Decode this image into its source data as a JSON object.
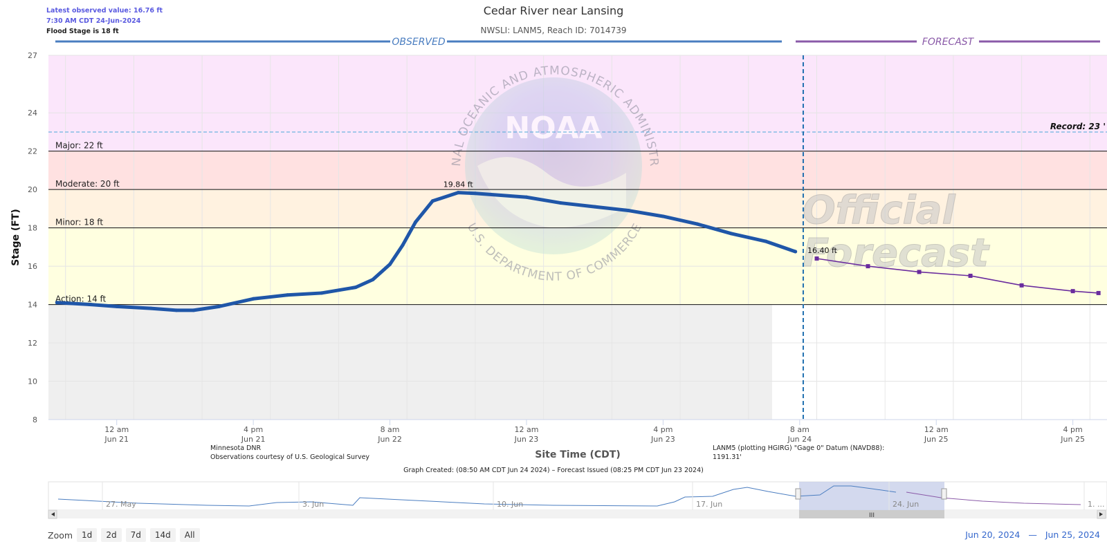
{
  "header": {
    "latest_value": "Latest observed value: 16.76 ft",
    "latest_time": "7:30 AM CDT 24-Jun-2024",
    "flood_stage": "Flood Stage is 18 ft",
    "title": "Cedar River near Lansing",
    "subtitle": "NWSLI: LANM5, Reach ID: 7014739"
  },
  "footer": {
    "credit_line1": "Minnesota DNR",
    "credit_line2": "Observations courtesy of U.S. Geological Survey",
    "datum_line1": "LANM5 (plotting HGIRG) \"Gage 0\" Datum (NAVD88):",
    "datum_line2": "1191.31'",
    "graph_created": "Graph Created: (08:50 AM CDT Jun 24 2024) – Forecast Issued (08:25 PM CDT Jun 23 2024)"
  },
  "watermark": {
    "arc_text": "NATIONAL OCEANIC AND ATMOSPHERIC ADMINISTRATION",
    "bottom_text": "U.S. DEPARTMENT OF COMMERCE",
    "logo_text": "NOAA",
    "official1": "Official",
    "official2": "Forecast"
  },
  "navigator": {
    "labels": [
      "27. May",
      "3. Jun",
      "10. Jun",
      "17. Jun",
      "24. Jun",
      "1. ..."
    ],
    "grip": "III"
  },
  "zoom": {
    "label": "Zoom",
    "buttons": [
      "1d",
      "2d",
      "7d",
      "14d",
      "All"
    ]
  },
  "range": {
    "from": "Jun 20, 2024",
    "dash": "—",
    "to": "Jun 25, 2024"
  },
  "chart_data": {
    "type": "line",
    "title": "Cedar River near Lansing",
    "subtitle": "NWSLI: LANM5, Reach ID: 7014739",
    "xlabel": "Site Time (CDT)",
    "ylabel": "Stage (FT)",
    "ylim": [
      8,
      27
    ],
    "yticks": [
      "8",
      "10",
      "12",
      "14",
      "16",
      "18",
      "20",
      "22",
      "24",
      "27"
    ],
    "xticks": [
      {
        "time": "2024-06-21T00:00",
        "label1": "12 am",
        "label2": "Jun 21"
      },
      {
        "time": "2024-06-21T16:00",
        "label1": "4 pm",
        "label2": "Jun 21"
      },
      {
        "time": "2024-06-22T08:00",
        "label1": "8 am",
        "label2": "Jun 22"
      },
      {
        "time": "2024-06-23T00:00",
        "label1": "12 am",
        "label2": "Jun 23"
      },
      {
        "time": "2024-06-23T16:00",
        "label1": "4 pm",
        "label2": "Jun 23"
      },
      {
        "time": "2024-06-24T08:00",
        "label1": "8 am",
        "label2": "Jun 24"
      },
      {
        "time": "2024-06-25T00:00",
        "label1": "12 am",
        "label2": "Jun 25"
      },
      {
        "time": "2024-06-25T16:00",
        "label1": "4 pm",
        "label2": "Jun 25"
      }
    ],
    "sections": {
      "observed": "OBSERVED",
      "forecast": "FORECAST"
    },
    "forecast_divider": "2024-06-24T08:25",
    "flood_categories": [
      {
        "name": "Action",
        "label": "Action: 14 ft",
        "from": 14,
        "to": 18,
        "color": "#ffffe0"
      },
      {
        "name": "Minor",
        "label": "Minor: 18 ft",
        "from": 18,
        "to": 20,
        "color": "#fff2e0"
      },
      {
        "name": "Moderate",
        "label": "Moderate: 20 ft",
        "from": 20,
        "to": 22,
        "color": "#ffe1e1"
      },
      {
        "name": "Major",
        "label": "Major: 22 ft",
        "from": 22,
        "to": 27,
        "color": "#fbe6fb"
      }
    ],
    "below_action_color": "#efefef",
    "record": {
      "value": 23,
      "label": "Record: 23 '"
    },
    "series": [
      {
        "name": "Observed",
        "color": "#1f56a8",
        "x": [
          "2024-06-20T17:00",
          "2024-06-20T21:00",
          "2024-06-21T00:00",
          "2024-06-21T04:00",
          "2024-06-21T07:00",
          "2024-06-21T09:00",
          "2024-06-21T12:00",
          "2024-06-21T16:00",
          "2024-06-21T20:00",
          "2024-06-22T00:00",
          "2024-06-22T04:00",
          "2024-06-22T06:00",
          "2024-06-22T08:00",
          "2024-06-22T09:30",
          "2024-06-22T11:00",
          "2024-06-22T13:00",
          "2024-06-22T16:00",
          "2024-06-22T18:00",
          "2024-06-22T21:00",
          "2024-06-23T00:00",
          "2024-06-23T04:00",
          "2024-06-23T08:00",
          "2024-06-23T12:00",
          "2024-06-23T16:00",
          "2024-06-23T20:00",
          "2024-06-24T00:00",
          "2024-06-24T04:00",
          "2024-06-24T07:30"
        ],
        "y": [
          14.1,
          14.0,
          13.9,
          13.8,
          13.7,
          13.7,
          13.9,
          14.3,
          14.5,
          14.6,
          14.9,
          15.3,
          16.1,
          17.1,
          18.3,
          19.4,
          19.84,
          19.8,
          19.7,
          19.6,
          19.3,
          19.1,
          18.9,
          18.6,
          18.2,
          17.7,
          17.3,
          16.76
        ]
      },
      {
        "name": "Forecast",
        "color": "#6a2c9e",
        "x": [
          "2024-06-24T10:00",
          "2024-06-24T16:00",
          "2024-06-24T22:00",
          "2024-06-25T04:00",
          "2024-06-25T10:00",
          "2024-06-25T16:00",
          "2024-06-25T19:00"
        ],
        "y": [
          16.4,
          16.0,
          15.7,
          15.5,
          15.0,
          14.7,
          14.6
        ]
      }
    ],
    "annotations": [
      {
        "label": "19.84 ft",
        "x": "2024-06-22T16:00",
        "y": 19.84
      },
      {
        "label": "16.40 ft",
        "x": "2024-06-24T10:00",
        "y": 16.4
      }
    ],
    "grid": true
  }
}
